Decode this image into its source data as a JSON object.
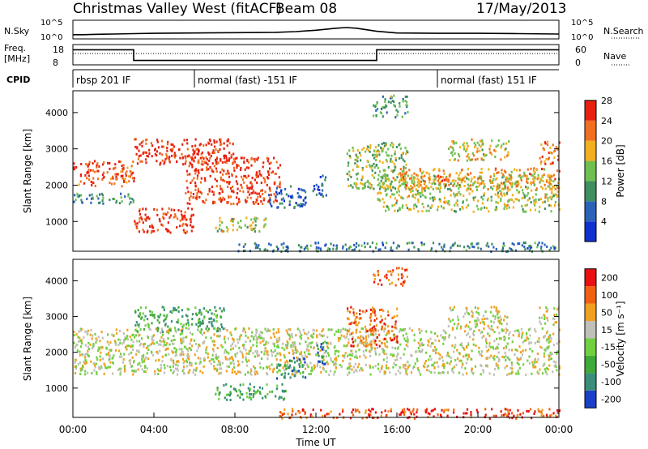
{
  "header": {
    "station": "Christmas Valley West (fitACF)",
    "beam": "Beam 08",
    "date": "17/May/2013"
  },
  "chart_data": [
    {
      "type": "line",
      "name": "sky-noise",
      "label_left": "N.Sky",
      "label_right": "N.Search",
      "ticks_left": [
        "10^5",
        "10^0"
      ],
      "ticks_right": [
        "10^5",
        "10^0"
      ],
      "scale": "log",
      "x_hours": [
        0,
        0.5,
        1,
        2,
        3,
        4,
        6,
        8,
        10,
        11,
        12,
        13,
        13.5,
        14,
        15,
        16,
        18,
        20,
        22,
        24
      ],
      "y_log10": [
        1.0,
        1.0,
        1.1,
        1.2,
        1.3,
        1.4,
        1.5,
        1.6,
        1.7,
        1.9,
        2.3,
        2.9,
        3.1,
        2.9,
        2.0,
        1.5,
        1.4,
        1.4,
        1.3,
        1.2
      ]
    },
    {
      "type": "line",
      "name": "frequency",
      "label_left": "Freq.",
      "label_left_unit": "[MHz]",
      "label_right": "Nave",
      "ticks_left": [
        "18",
        "8"
      ],
      "ticks_right": [
        "60",
        "0"
      ],
      "segments": [
        {
          "from": 0.0,
          "to": 3.0,
          "freq": 16
        },
        {
          "from": 3.0,
          "to": 15.0,
          "freq": 10
        },
        {
          "from": 15.0,
          "to": 24.0,
          "freq": 16
        }
      ]
    },
    {
      "type": "table",
      "name": "cpid",
      "label": "CPID",
      "segments": [
        {
          "from": 0.0,
          "text": "rbsp 201 IF"
        },
        {
          "from": 6.0,
          "text": "normal (fast) -151 IF"
        },
        {
          "from": 18.0,
          "text": "normal (fast) 151 IF"
        }
      ]
    },
    {
      "type": "heatmap",
      "name": "power",
      "ylabel": "Slant Range [km]",
      "yticks": [
        1000,
        2000,
        3000,
        4000
      ],
      "ylim": [
        180,
        4600
      ],
      "colorbar": {
        "label": "Power [dB]",
        "ticks": [
          4,
          8,
          12,
          16,
          20,
          24,
          28
        ],
        "colors": [
          "#1030d0",
          "#2a62b8",
          "#3f8f60",
          "#6fc050",
          "#f0b020",
          "#f07020",
          "#e82010"
        ]
      },
      "regions": [
        {
          "t0": 0.0,
          "t1": 3.0,
          "r0": 2000,
          "r1": 2700,
          "level": 0.85
        },
        {
          "t0": 0.0,
          "t1": 3.0,
          "r0": 1500,
          "r1": 1800,
          "level": 0.35
        },
        {
          "t0": 3.0,
          "t1": 8.0,
          "r0": 2600,
          "r1": 3300,
          "level": 0.95
        },
        {
          "t0": 3.0,
          "t1": 6.0,
          "r0": 700,
          "r1": 1400,
          "level": 0.95
        },
        {
          "t0": 5.5,
          "t1": 10.2,
          "r0": 1500,
          "r1": 2800,
          "level": 0.9
        },
        {
          "t0": 7.0,
          "t1": 9.5,
          "r0": 750,
          "r1": 1150,
          "level": 0.55
        },
        {
          "t0": 9.5,
          "t1": 11.5,
          "r0": 1400,
          "r1": 2000,
          "level": 0.2
        },
        {
          "t0": 11.8,
          "t1": 12.5,
          "r0": 1700,
          "r1": 2300,
          "level": 0.2
        },
        {
          "t0": 13.5,
          "t1": 16.5,
          "r0": 1900,
          "r1": 3200,
          "level": 0.5
        },
        {
          "t0": 15.0,
          "t1": 24.0,
          "r0": 1300,
          "r1": 2300,
          "level": 0.55
        },
        {
          "t0": 16.0,
          "t1": 24.0,
          "r0": 1900,
          "r1": 2500,
          "level": 0.7
        },
        {
          "t0": 14.8,
          "t1": 16.5,
          "r0": 3900,
          "r1": 4500,
          "level": 0.4
        },
        {
          "t0": 18.5,
          "t1": 21.5,
          "r0": 2700,
          "r1": 3300,
          "level": 0.6
        },
        {
          "t0": 23.0,
          "t1": 24.0,
          "r0": 2600,
          "r1": 3300,
          "level": 0.75
        },
        {
          "t0": 8.0,
          "t1": 24.0,
          "r0": 200,
          "r1": 450,
          "level": 0.3
        }
      ]
    },
    {
      "type": "heatmap",
      "name": "velocity",
      "xlabel": "Time UT",
      "xticks": [
        "00:00",
        "04:00",
        "08:00",
        "12:00",
        "16:00",
        "20:00",
        "00:00"
      ],
      "ylabel": "Slant Range [km]",
      "yticks": [
        1000,
        2000,
        3000,
        4000
      ],
      "ylim": [
        180,
        4600
      ],
      "colorbar": {
        "label": "Velocity [m s⁻¹]",
        "ticks": [
          "200",
          "100",
          "50",
          "15",
          "-15",
          "-50",
          "-100",
          "-200"
        ],
        "colors": [
          "#1a3fc8",
          "#3a8f7a",
          "#3faa3a",
          "#70d040",
          "#c0c0b8",
          "#f0a020",
          "#f06010",
          "#e81010"
        ]
      },
      "regions": [
        {
          "t0": 0.0,
          "t1": 24.0,
          "r0": 1400,
          "r1": 2700,
          "level": 0.55
        },
        {
          "t0": 3.0,
          "t1": 7.5,
          "r0": 2600,
          "r1": 3300,
          "level": 0.3
        },
        {
          "t0": 7.0,
          "t1": 10.5,
          "r0": 700,
          "r1": 1150,
          "level": 0.3
        },
        {
          "t0": 10.0,
          "t1": 11.5,
          "r0": 1300,
          "r1": 1900,
          "level": 0.2
        },
        {
          "t0": 12.0,
          "t1": 12.5,
          "r0": 1700,
          "r1": 2300,
          "level": 0.2
        },
        {
          "t0": 13.5,
          "t1": 16.0,
          "r0": 2200,
          "r1": 3300,
          "level": 0.8
        },
        {
          "t0": 14.8,
          "t1": 16.5,
          "r0": 3900,
          "r1": 4400,
          "level": 0.8
        },
        {
          "t0": 18.5,
          "t1": 21.5,
          "r0": 2700,
          "r1": 3300,
          "level": 0.55
        },
        {
          "t0": 23.0,
          "t1": 24.0,
          "r0": 2800,
          "r1": 3300,
          "level": 0.55
        },
        {
          "t0": 10.0,
          "t1": 24.0,
          "r0": 180,
          "r1": 450,
          "level": 0.85
        }
      ]
    }
  ]
}
